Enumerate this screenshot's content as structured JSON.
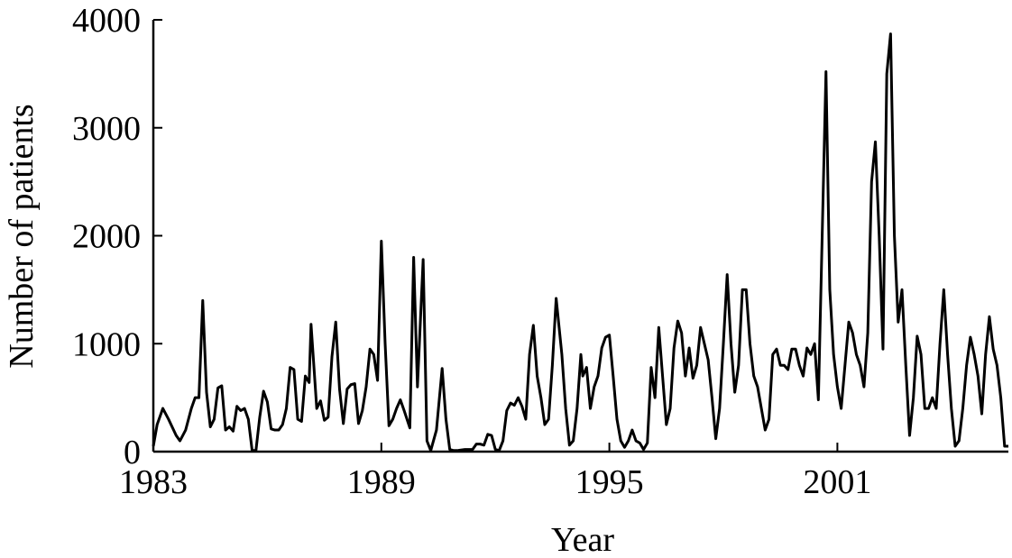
{
  "chart_data": {
    "type": "line",
    "xlabel": "Year",
    "ylabel": "Number of patients",
    "xlim": [
      1983,
      2005.5
    ],
    "ylim": [
      0,
      4000
    ],
    "grid": false,
    "x_ticks": [
      {
        "value": 1983,
        "label": "1983"
      },
      {
        "value": 1989,
        "label": "1989"
      },
      {
        "value": 1995,
        "label": "1995"
      },
      {
        "value": 2001,
        "label": "2001"
      }
    ],
    "y_ticks": [
      {
        "value": 0,
        "label": "0"
      },
      {
        "value": 1000,
        "label": "1000"
      },
      {
        "value": 2000,
        "label": "2000"
      },
      {
        "value": 3000,
        "label": "3000"
      },
      {
        "value": 4000,
        "label": "4000"
      }
    ],
    "series": [
      {
        "color": "#000000",
        "points": [
          [
            1983.0,
            50
          ],
          [
            1983.1,
            250
          ],
          [
            1983.25,
            400
          ],
          [
            1983.4,
            300
          ],
          [
            1983.6,
            150
          ],
          [
            1983.7,
            100
          ],
          [
            1983.85,
            200
          ],
          [
            1984.0,
            400
          ],
          [
            1984.1,
            500
          ],
          [
            1984.2,
            500
          ],
          [
            1984.3,
            1400
          ],
          [
            1984.4,
            550
          ],
          [
            1984.5,
            230
          ],
          [
            1984.6,
            300
          ],
          [
            1984.7,
            590
          ],
          [
            1984.8,
            610
          ],
          [
            1984.9,
            200
          ],
          [
            1985.0,
            230
          ],
          [
            1985.1,
            190
          ],
          [
            1985.2,
            420
          ],
          [
            1985.3,
            380
          ],
          [
            1985.4,
            400
          ],
          [
            1985.5,
            300
          ],
          [
            1985.6,
            10
          ],
          [
            1985.7,
            10
          ],
          [
            1985.8,
            320
          ],
          [
            1985.9,
            560
          ],
          [
            1986.0,
            460
          ],
          [
            1986.1,
            210
          ],
          [
            1986.2,
            200
          ],
          [
            1986.3,
            200
          ],
          [
            1986.4,
            250
          ],
          [
            1986.5,
            400
          ],
          [
            1986.6,
            780
          ],
          [
            1986.7,
            760
          ],
          [
            1986.8,
            300
          ],
          [
            1986.9,
            280
          ],
          [
            1987.0,
            700
          ],
          [
            1987.1,
            640
          ],
          [
            1987.15,
            1180
          ],
          [
            1987.3,
            400
          ],
          [
            1987.4,
            470
          ],
          [
            1987.5,
            290
          ],
          [
            1987.6,
            320
          ],
          [
            1987.7,
            880
          ],
          [
            1987.8,
            1200
          ],
          [
            1987.9,
            580
          ],
          [
            1988.0,
            260
          ],
          [
            1988.1,
            580
          ],
          [
            1988.2,
            620
          ],
          [
            1988.3,
            630
          ],
          [
            1988.4,
            260
          ],
          [
            1988.5,
            380
          ],
          [
            1988.6,
            600
          ],
          [
            1988.7,
            950
          ],
          [
            1988.8,
            900
          ],
          [
            1988.9,
            660
          ],
          [
            1989.0,
            1950
          ],
          [
            1989.1,
            1000
          ],
          [
            1989.2,
            240
          ],
          [
            1989.3,
            300
          ],
          [
            1989.4,
            400
          ],
          [
            1989.5,
            480
          ],
          [
            1989.6,
            380
          ],
          [
            1989.75,
            220
          ],
          [
            1989.85,
            1800
          ],
          [
            1989.95,
            600
          ],
          [
            1990.1,
            1780
          ],
          [
            1990.2,
            100
          ],
          [
            1990.3,
            10
          ],
          [
            1990.45,
            200
          ],
          [
            1990.6,
            770
          ],
          [
            1990.7,
            300
          ],
          [
            1990.8,
            20
          ],
          [
            1990.9,
            10
          ],
          [
            1991.0,
            10
          ],
          [
            1991.2,
            20
          ],
          [
            1991.4,
            20
          ],
          [
            1991.5,
            70
          ],
          [
            1991.6,
            70
          ],
          [
            1991.7,
            60
          ],
          [
            1991.8,
            160
          ],
          [
            1991.9,
            150
          ],
          [
            1992.0,
            20
          ],
          [
            1992.1,
            10
          ],
          [
            1992.2,
            100
          ],
          [
            1992.3,
            380
          ],
          [
            1992.4,
            450
          ],
          [
            1992.5,
            430
          ],
          [
            1992.6,
            500
          ],
          [
            1992.7,
            420
          ],
          [
            1992.8,
            300
          ],
          [
            1992.9,
            900
          ],
          [
            1993.0,
            1170
          ],
          [
            1993.1,
            700
          ],
          [
            1993.2,
            500
          ],
          [
            1993.3,
            250
          ],
          [
            1993.4,
            300
          ],
          [
            1993.5,
            800
          ],
          [
            1993.6,
            1420
          ],
          [
            1993.75,
            900
          ],
          [
            1993.85,
            400
          ],
          [
            1993.95,
            60
          ],
          [
            1994.05,
            100
          ],
          [
            1994.15,
            400
          ],
          [
            1994.25,
            900
          ],
          [
            1994.3,
            700
          ],
          [
            1994.4,
            780
          ],
          [
            1994.5,
            400
          ],
          [
            1994.6,
            600
          ],
          [
            1994.7,
            700
          ],
          [
            1994.8,
            960
          ],
          [
            1994.9,
            1060
          ],
          [
            1995.0,
            1080
          ],
          [
            1995.1,
            700
          ],
          [
            1995.2,
            300
          ],
          [
            1995.3,
            100
          ],
          [
            1995.4,
            40
          ],
          [
            1995.5,
            100
          ],
          [
            1995.6,
            200
          ],
          [
            1995.7,
            100
          ],
          [
            1995.8,
            80
          ],
          [
            1995.9,
            20
          ],
          [
            1996.0,
            80
          ],
          [
            1996.1,
            780
          ],
          [
            1996.2,
            500
          ],
          [
            1996.3,
            1150
          ],
          [
            1996.4,
            700
          ],
          [
            1996.5,
            250
          ],
          [
            1996.6,
            400
          ],
          [
            1996.7,
            960
          ],
          [
            1996.8,
            1210
          ],
          [
            1996.9,
            1100
          ],
          [
            1997.0,
            700
          ],
          [
            1997.1,
            960
          ],
          [
            1997.2,
            680
          ],
          [
            1997.3,
            800
          ],
          [
            1997.4,
            1150
          ],
          [
            1997.5,
            1000
          ],
          [
            1997.6,
            850
          ],
          [
            1997.7,
            500
          ],
          [
            1997.8,
            120
          ],
          [
            1997.9,
            400
          ],
          [
            1998.0,
            1000
          ],
          [
            1998.1,
            1640
          ],
          [
            1998.2,
            1000
          ],
          [
            1998.3,
            550
          ],
          [
            1998.4,
            800
          ],
          [
            1998.5,
            1500
          ],
          [
            1998.6,
            1500
          ],
          [
            1998.7,
            1000
          ],
          [
            1998.8,
            700
          ],
          [
            1998.9,
            600
          ],
          [
            1999.0,
            400
          ],
          [
            1999.1,
            200
          ],
          [
            1999.2,
            300
          ],
          [
            1999.3,
            900
          ],
          [
            1999.4,
            950
          ],
          [
            1999.5,
            800
          ],
          [
            1999.6,
            800
          ],
          [
            1999.7,
            760
          ],
          [
            1999.8,
            950
          ],
          [
            1999.9,
            950
          ],
          [
            2000.0,
            800
          ],
          [
            2000.1,
            700
          ],
          [
            2000.2,
            960
          ],
          [
            2000.3,
            900
          ],
          [
            2000.4,
            1000
          ],
          [
            2000.5,
            480
          ],
          [
            2000.6,
            2000
          ],
          [
            2000.7,
            3520
          ],
          [
            2000.8,
            1500
          ],
          [
            2000.9,
            900
          ],
          [
            2001.0,
            600
          ],
          [
            2001.1,
            400
          ],
          [
            2001.2,
            800
          ],
          [
            2001.3,
            1200
          ],
          [
            2001.4,
            1100
          ],
          [
            2001.5,
            900
          ],
          [
            2001.6,
            800
          ],
          [
            2001.7,
            600
          ],
          [
            2001.8,
            1100
          ],
          [
            2001.9,
            2500
          ],
          [
            2002.0,
            2870
          ],
          [
            2002.1,
            2000
          ],
          [
            2002.2,
            950
          ],
          [
            2002.3,
            3500
          ],
          [
            2002.4,
            3870
          ],
          [
            2002.5,
            2000
          ],
          [
            2002.6,
            1200
          ],
          [
            2002.7,
            1500
          ],
          [
            2002.8,
            800
          ],
          [
            2002.9,
            150
          ],
          [
            2003.0,
            500
          ],
          [
            2003.1,
            1070
          ],
          [
            2003.2,
            900
          ],
          [
            2003.3,
            400
          ],
          [
            2003.4,
            400
          ],
          [
            2003.5,
            500
          ],
          [
            2003.6,
            400
          ],
          [
            2003.7,
            1000
          ],
          [
            2003.8,
            1500
          ],
          [
            2003.9,
            900
          ],
          [
            2004.0,
            400
          ],
          [
            2004.1,
            50
          ],
          [
            2004.2,
            100
          ],
          [
            2004.3,
            400
          ],
          [
            2004.4,
            800
          ],
          [
            2004.5,
            1060
          ],
          [
            2004.6,
            900
          ],
          [
            2004.7,
            700
          ],
          [
            2004.8,
            350
          ],
          [
            2004.9,
            900
          ],
          [
            2005.0,
            1250
          ],
          [
            2005.1,
            950
          ],
          [
            2005.2,
            800
          ],
          [
            2005.3,
            500
          ],
          [
            2005.4,
            50
          ],
          [
            2005.5,
            50
          ]
        ]
      }
    ]
  }
}
